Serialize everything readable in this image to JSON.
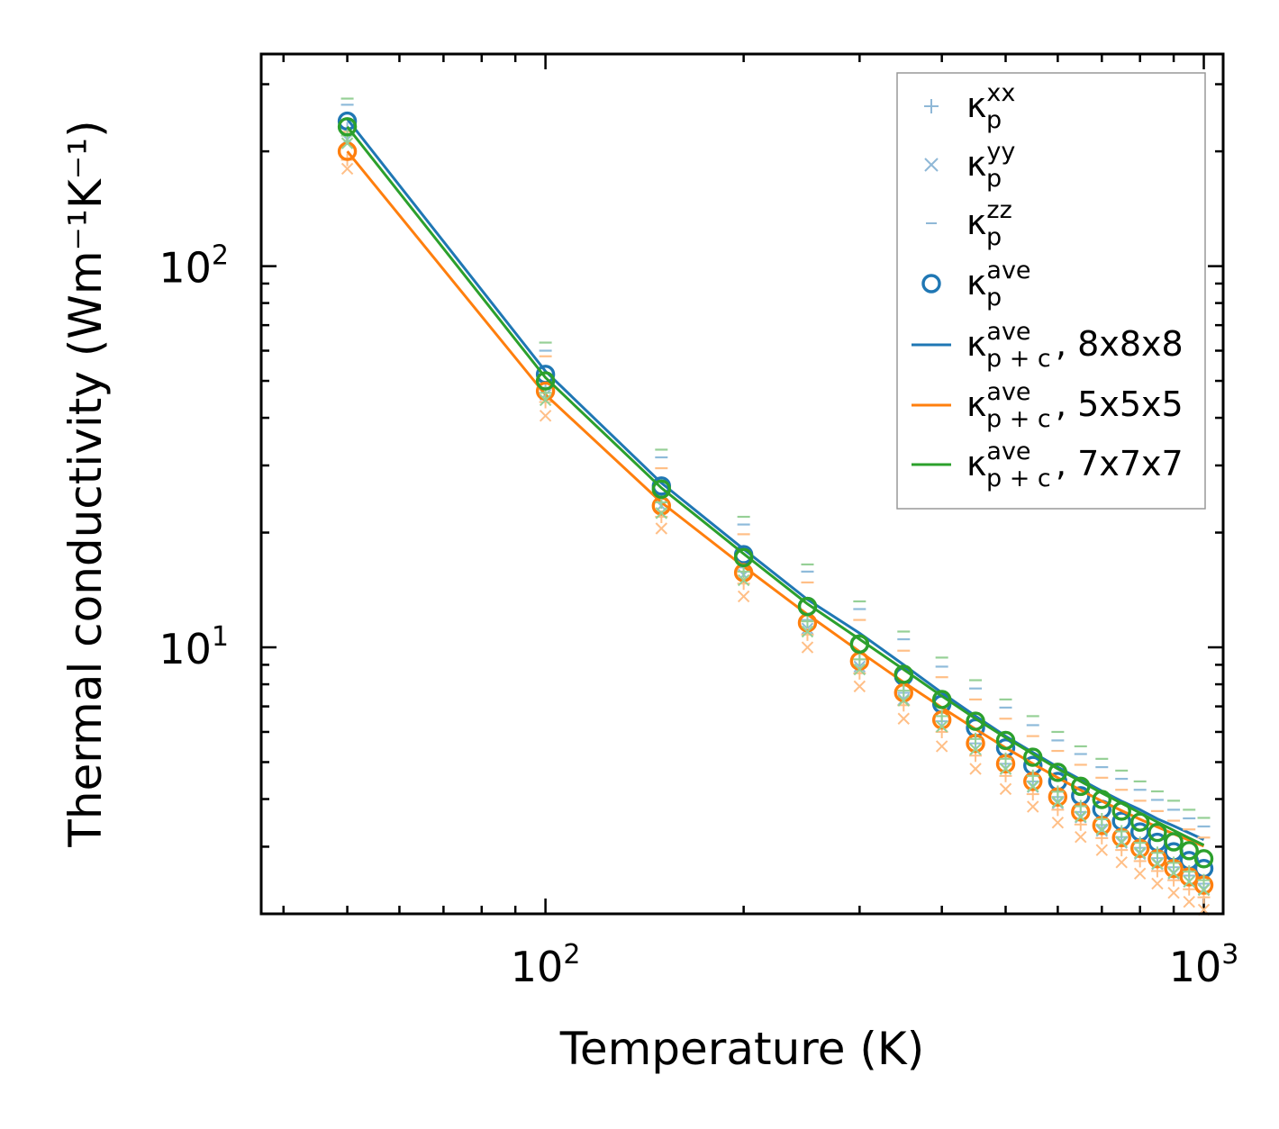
{
  "chart_data": {
    "type": "scatter",
    "xlabel": "Temperature (K)",
    "ylabel": "Thermal conductivity (Wm⁻¹K⁻¹)",
    "xscale": "log",
    "yscale": "log",
    "xlim": [
      37,
      1070
    ],
    "ylim": [
      2.0,
      360
    ],
    "xticks": [
      {
        "value": 100,
        "base": "10",
        "exp": "2"
      },
      {
        "value": 1000,
        "base": "10",
        "exp": "3"
      }
    ],
    "yticks": [
      {
        "value": 10,
        "base": "10",
        "exp": "1"
      },
      {
        "value": 100,
        "base": "10",
        "exp": "2"
      }
    ],
    "x": [
      50,
      100,
      150,
      200,
      250,
      300,
      350,
      400,
      450,
      500,
      550,
      600,
      650,
      700,
      750,
      800,
      850,
      900,
      950,
      1000
    ],
    "series": [
      {
        "name": "8x8x8",
        "color": "#1f77b4",
        "ave": [
          240,
          52,
          26.5,
          17.5,
          12.8,
          10.2,
          8.4,
          7.1,
          6.15,
          5.45,
          4.9,
          4.45,
          4.08,
          3.76,
          3.5,
          3.28,
          3.08,
          2.91,
          2.76,
          2.63
        ],
        "xx": [
          230,
          48,
          24.5,
          16.2,
          11.8,
          9.3,
          7.6,
          6.4,
          5.6,
          4.95,
          4.45,
          4.05,
          3.7,
          3.42,
          3.18,
          2.98,
          2.8,
          2.65,
          2.52,
          2.4
        ],
        "yy": [
          215,
          46,
          23.5,
          15.5,
          11.2,
          8.9,
          7.3,
          6.2,
          5.4,
          4.8,
          4.3,
          3.9,
          3.58,
          3.3,
          3.07,
          2.87,
          2.7,
          2.55,
          2.43,
          2.32
        ],
        "zz": [
          265,
          60,
          31.5,
          21,
          15.8,
          12.6,
          10.5,
          8.9,
          7.8,
          6.95,
          6.25,
          5.7,
          5.25,
          4.85,
          4.52,
          4.23,
          3.98,
          3.75,
          3.56,
          3.39
        ],
        "fit": [
          243,
          53,
          27,
          18.1,
          13.35,
          10.9,
          9.0,
          7.6,
          6.6,
          5.85,
          5.3,
          4.85,
          4.5,
          4.2,
          3.95,
          3.75,
          3.55,
          3.4,
          3.26,
          3.13
        ]
      },
      {
        "name": "5x5x5",
        "color": "#ff7f0e",
        "ave": [
          200,
          47,
          23.5,
          15.7,
          11.6,
          9.2,
          7.6,
          6.45,
          5.6,
          4.95,
          4.45,
          4.05,
          3.7,
          3.41,
          3.17,
          2.97,
          2.79,
          2.63,
          2.5,
          2.38
        ],
        "xx": [
          190,
          44,
          22,
          14.7,
          10.8,
          8.55,
          7.05,
          6.0,
          5.2,
          4.6,
          4.12,
          3.75,
          3.43,
          3.16,
          2.94,
          2.75,
          2.59,
          2.45,
          2.32,
          2.21
        ],
        "yy": [
          180,
          40.5,
          20.5,
          13.6,
          10.0,
          7.9,
          6.5,
          5.5,
          4.8,
          4.25,
          3.82,
          3.47,
          3.18,
          2.94,
          2.73,
          2.55,
          2.4,
          2.27,
          2.15,
          2.05
        ],
        "zz": [
          225,
          58,
          29.5,
          19.8,
          14.8,
          11.8,
          9.8,
          8.35,
          7.3,
          6.5,
          5.85,
          5.35,
          4.92,
          4.55,
          4.23,
          3.96,
          3.72,
          3.51,
          3.33,
          3.17
        ],
        "fit": [
          200,
          46,
          24,
          16.3,
          12.2,
          9.75,
          8.1,
          6.95,
          6.1,
          5.45,
          4.95,
          4.55,
          4.22,
          3.95,
          3.73,
          3.54,
          3.38,
          3.24,
          3.12,
          3.01
        ]
      },
      {
        "name": "7x7x7",
        "color": "#2ca02c",
        "ave": [
          232,
          50,
          26,
          17.2,
          12.8,
          10.2,
          8.5,
          7.3,
          6.4,
          5.7,
          5.15,
          4.7,
          4.32,
          3.99,
          3.72,
          3.48,
          3.27,
          3.09,
          2.93,
          2.79
        ],
        "xx": [
          220,
          46.5,
          24,
          15.8,
          11.7,
          9.3,
          7.7,
          6.6,
          5.75,
          5.1,
          4.6,
          4.18,
          3.83,
          3.54,
          3.29,
          3.07,
          2.89,
          2.72,
          2.58,
          2.45
        ],
        "yy": [
          210,
          44.5,
          22.5,
          15.0,
          11.0,
          8.75,
          7.25,
          6.2,
          5.4,
          4.8,
          4.32,
          3.93,
          3.6,
          3.33,
          3.09,
          2.89,
          2.71,
          2.56,
          2.43,
          2.31
        ],
        "zz": [
          275,
          63,
          33,
          22,
          16.5,
          13.2,
          11.0,
          9.4,
          8.2,
          7.3,
          6.6,
          6.0,
          5.5,
          5.1,
          4.75,
          4.45,
          4.19,
          3.96,
          3.75,
          3.57
        ],
        "fit": [
          232,
          51,
          26.2,
          17.6,
          13.0,
          10.5,
          8.75,
          7.45,
          6.5,
          5.8,
          5.25,
          4.8,
          4.45,
          4.15,
          3.9,
          3.68,
          3.48,
          3.31,
          3.16,
          3.03
        ]
      }
    ],
    "legend": {
      "position": "top-right",
      "entries": [
        {
          "symbol": "k",
          "sup": "xx",
          "sub": "p",
          "tail": "",
          "marker": "plus",
          "color": "#8fb8d7"
        },
        {
          "symbol": "k",
          "sup": "yy",
          "sub": "p",
          "tail": "",
          "marker": "x",
          "color": "#8fb8d7"
        },
        {
          "symbol": "k",
          "sup": "zz",
          "sub": "p",
          "tail": "",
          "marker": "dash",
          "color": "#8fb8d7"
        },
        {
          "symbol": "k",
          "sup": "ave",
          "sub": "p",
          "tail": "",
          "marker": "circle",
          "color": "#1f77b4"
        },
        {
          "symbol": "k",
          "sup": "ave",
          "sub": "p + c",
          "tail": ", 8x8x8",
          "marker": "line",
          "color": "#1f77b4"
        },
        {
          "symbol": "k",
          "sup": "ave",
          "sub": "p + c",
          "tail": ", 5x5x5",
          "marker": "line",
          "color": "#ff7f0e"
        },
        {
          "symbol": "k",
          "sup": "ave",
          "sub": "p + c",
          "tail": ", 7x7x7",
          "marker": "line",
          "color": "#2ca02c"
        }
      ]
    }
  }
}
